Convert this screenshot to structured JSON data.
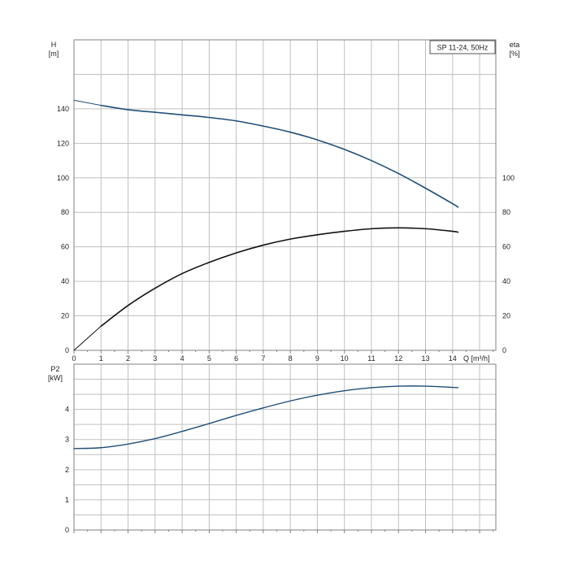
{
  "chart_data": [
    {
      "type": "line",
      "panel": "head-efficiency",
      "label_box": "SP 11-24, 50Hz",
      "x_axis": {
        "title": "Q [m³/h]",
        "ticks": [
          "0",
          "1",
          "2",
          "3",
          "4",
          "5",
          "6",
          "7",
          "8",
          "9",
          "10",
          "11",
          "12",
          "13",
          "14"
        ],
        "range": [
          0,
          15.6
        ]
      },
      "y_axis_left": {
        "title": "H",
        "unit": "[m]",
        "ticks": [
          "0",
          "20",
          "40",
          "60",
          "80",
          "100",
          "120",
          "140"
        ],
        "range": [
          0,
          180
        ]
      },
      "y_axis_right": {
        "title": "eta",
        "unit": "[%]",
        "ticks": [
          "0",
          "20",
          "40",
          "60",
          "80",
          "100"
        ],
        "range": [
          0,
          180
        ]
      },
      "grid": true,
      "series": [
        {
          "axis": "left",
          "color": "#1f4e79",
          "x": [
            0,
            1,
            2,
            3,
            4,
            5,
            6,
            7,
            8,
            9,
            10,
            11,
            12,
            13,
            14,
            14.2
          ],
          "y": [
            145,
            142,
            139.5,
            138,
            136.5,
            135,
            133,
            130,
            126.5,
            122,
            116.5,
            110,
            102.5,
            94,
            85,
            83
          ]
        },
        {
          "axis": "right",
          "color": "#111111",
          "x": [
            0,
            1,
            2,
            3,
            4,
            5,
            6,
            7,
            8,
            9,
            10,
            11,
            12,
            13,
            14,
            14.2
          ],
          "y": [
            0,
            14,
            26,
            36,
            44.5,
            51,
            56.5,
            61,
            64.5,
            67,
            69,
            70.5,
            71,
            70.5,
            69,
            68.5
          ]
        }
      ]
    },
    {
      "type": "line",
      "panel": "power",
      "x_axis": {
        "ticks": [],
        "range": [
          0,
          15.6
        ]
      },
      "y_axis_left": {
        "title": "P2",
        "unit": "[kW]",
        "ticks": [
          "0",
          "1",
          "2",
          "3",
          "4"
        ],
        "range": [
          0,
          5.5
        ]
      },
      "grid": true,
      "series": [
        {
          "axis": "left",
          "color": "#1f4e79",
          "x": [
            0,
            1,
            2,
            3,
            4,
            5,
            6,
            7,
            8,
            9,
            10,
            11,
            12,
            13,
            14,
            14.2
          ],
          "y": [
            2.7,
            2.73,
            2.85,
            3.03,
            3.27,
            3.53,
            3.8,
            4.05,
            4.28,
            4.47,
            4.62,
            4.72,
            4.77,
            4.77,
            4.73,
            4.72
          ]
        }
      ]
    }
  ],
  "colors": {
    "grid": "#c0c0c0",
    "frame": "#808080",
    "head_curve": "#1f4e79",
    "eta_curve": "#111111",
    "power_curve": "#1f4e79"
  }
}
